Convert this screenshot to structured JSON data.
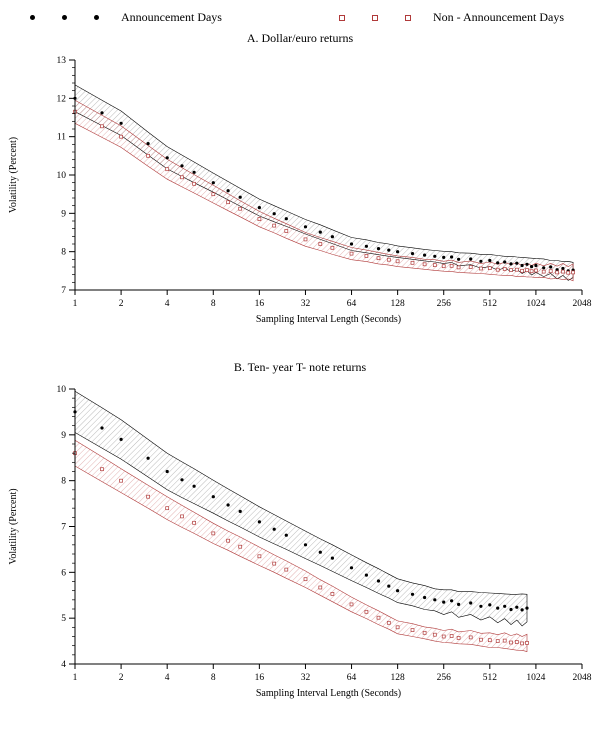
{
  "figure": {
    "legend": [
      {
        "label": "Announcement Days",
        "marker": "dot",
        "color": "#000000"
      },
      {
        "label": "Non - Announcement Days",
        "marker": "square",
        "color": "#b03a3a"
      }
    ]
  },
  "chart_data": [
    {
      "type": "scatter",
      "title": "A. Dollar/euro returns",
      "xlabel": "Sampling Interval Length (Seconds)",
      "ylabel": "Volatility (Percent)",
      "xscale": "log2",
      "xlim": [
        1,
        2048
      ],
      "ylim": [
        7,
        13
      ],
      "xticks": [
        1,
        2,
        4,
        8,
        16,
        32,
        64,
        128,
        256,
        512,
        1024,
        2048
      ],
      "yticks": [
        7,
        8,
        9,
        10,
        11,
        12,
        13
      ],
      "grid": false,
      "legend_position": "top",
      "series": [
        {
          "name": "Announcement Days",
          "marker": "dot",
          "color": "#000000",
          "hatch": "#777777",
          "x": [
            1,
            1.5,
            2,
            3,
            4,
            5,
            6,
            8,
            10,
            12,
            16,
            20,
            24,
            32,
            40,
            48,
            64,
            80,
            96,
            112,
            128,
            160,
            192,
            224,
            256,
            288,
            320,
            384,
            448,
            512,
            576,
            640,
            704,
            768,
            832,
            896,
            960,
            1024,
            1152,
            1280,
            1408,
            1536,
            1664,
            1792
          ],
          "y": [
            12.0,
            11.62,
            11.35,
            10.82,
            10.45,
            10.24,
            10.07,
            9.8,
            9.59,
            9.42,
            9.15,
            8.99,
            8.86,
            8.65,
            8.51,
            8.39,
            8.2,
            8.14,
            8.08,
            8.04,
            8.0,
            7.95,
            7.91,
            7.88,
            7.85,
            7.86,
            7.8,
            7.81,
            7.75,
            7.77,
            7.71,
            7.73,
            7.68,
            7.7,
            7.64,
            7.67,
            7.61,
            7.64,
            7.58,
            7.6,
            7.53,
            7.56,
            7.5,
            7.52
          ],
          "band": [
            0.35,
            0.33,
            0.32,
            0.3,
            0.29,
            0.28,
            0.27,
            0.25,
            0.24,
            0.23,
            0.22,
            0.21,
            0.2,
            0.19,
            0.19,
            0.18,
            0.17,
            0.17,
            0.16,
            0.16,
            0.15,
            0.15,
            0.15,
            0.15,
            0.16,
            0.14,
            0.17,
            0.15,
            0.18,
            0.16,
            0.19,
            0.15,
            0.2,
            0.16,
            0.21,
            0.17,
            0.22,
            0.18,
            0.23,
            0.17,
            0.24,
            0.18,
            0.25,
            0.2
          ]
        },
        {
          "name": "Non - Announcement Days",
          "marker": "square",
          "color": "#b03a3a",
          "hatch": "#c96a6a",
          "x": [
            1,
            1.5,
            2,
            3,
            4,
            5,
            6,
            8,
            10,
            12,
            16,
            20,
            24,
            32,
            40,
            48,
            64,
            80,
            96,
            112,
            128,
            160,
            192,
            224,
            256,
            288,
            320,
            384,
            448,
            512,
            576,
            640,
            704,
            768,
            832,
            896,
            960,
            1024,
            1152,
            1280,
            1408,
            1536,
            1664,
            1792
          ],
          "y": [
            11.65,
            11.27,
            11.0,
            10.5,
            10.15,
            9.94,
            9.77,
            9.5,
            9.29,
            9.12,
            8.85,
            8.68,
            8.54,
            8.32,
            8.2,
            8.1,
            7.95,
            7.89,
            7.83,
            7.79,
            7.75,
            7.71,
            7.67,
            7.65,
            7.62,
            7.63,
            7.59,
            7.6,
            7.56,
            7.57,
            7.53,
            7.55,
            7.52,
            7.53,
            7.5,
            7.52,
            7.49,
            7.51,
            7.48,
            7.49,
            7.46,
            7.48,
            7.45,
            7.46
          ],
          "band": [
            0.3,
            0.29,
            0.28,
            0.27,
            0.26,
            0.25,
            0.24,
            0.23,
            0.22,
            0.21,
            0.2,
            0.19,
            0.19,
            0.18,
            0.17,
            0.17,
            0.16,
            0.15,
            0.15,
            0.14,
            0.14,
            0.14,
            0.13,
            0.14,
            0.13,
            0.15,
            0.13,
            0.16,
            0.13,
            0.16,
            0.14,
            0.17,
            0.14,
            0.18,
            0.14,
            0.18,
            0.15,
            0.19,
            0.15,
            0.2,
            0.16,
            0.21,
            0.16,
            0.22
          ]
        }
      ]
    },
    {
      "type": "scatter",
      "title": "B. Ten- year T- note returns",
      "xlabel": "Sampling Interval Length (Seconds)",
      "ylabel": "Volatility (Percent)",
      "xscale": "log2",
      "xlim": [
        1,
        2048
      ],
      "ylim": [
        4,
        10
      ],
      "xticks": [
        1,
        2,
        4,
        8,
        16,
        32,
        64,
        128,
        256,
        512,
        1024,
        2048
      ],
      "yticks": [
        4,
        5,
        6,
        7,
        8,
        9,
        10
      ],
      "grid": false,
      "legend_position": "top",
      "series": [
        {
          "name": "Announcement Days",
          "marker": "dot",
          "color": "#000000",
          "hatch": "#777777",
          "x": [
            1,
            1.5,
            2,
            3,
            4,
            5,
            6,
            8,
            10,
            12,
            16,
            20,
            24,
            32,
            40,
            48,
            64,
            80,
            96,
            112,
            128,
            160,
            192,
            224,
            256,
            288,
            320,
            384,
            448,
            512,
            576,
            640,
            704,
            768,
            832,
            896
          ],
          "y": [
            9.5,
            9.15,
            8.9,
            8.49,
            8.2,
            8.02,
            7.88,
            7.65,
            7.47,
            7.33,
            7.1,
            6.94,
            6.81,
            6.6,
            6.44,
            6.31,
            6.1,
            5.94,
            5.81,
            5.7,
            5.6,
            5.52,
            5.45,
            5.4,
            5.35,
            5.38,
            5.3,
            5.33,
            5.26,
            5.29,
            5.22,
            5.26,
            5.19,
            5.24,
            5.18,
            5.22
          ],
          "band": [
            0.45,
            0.44,
            0.43,
            0.41,
            0.4,
            0.39,
            0.38,
            0.36,
            0.35,
            0.34,
            0.33,
            0.32,
            0.31,
            0.3,
            0.29,
            0.29,
            0.28,
            0.27,
            0.27,
            0.26,
            0.26,
            0.25,
            0.26,
            0.24,
            0.27,
            0.24,
            0.28,
            0.25,
            0.3,
            0.26,
            0.32,
            0.27,
            0.33,
            0.28,
            0.35,
            0.3
          ]
        },
        {
          "name": "Non - Announcement Days",
          "marker": "square",
          "color": "#b03a3a",
          "hatch": "#c96a6a",
          "x": [
            1,
            1.5,
            2,
            3,
            4,
            5,
            6,
            8,
            10,
            12,
            16,
            20,
            24,
            32,
            40,
            48,
            64,
            80,
            96,
            112,
            128,
            160,
            192,
            224,
            256,
            288,
            320,
            384,
            448,
            512,
            576,
            640,
            704,
            768,
            832,
            896
          ],
          "y": [
            8.6,
            8.25,
            8.0,
            7.65,
            7.4,
            7.22,
            7.08,
            6.85,
            6.69,
            6.56,
            6.35,
            6.19,
            6.06,
            5.85,
            5.67,
            5.53,
            5.3,
            5.14,
            5.01,
            4.9,
            4.8,
            4.74,
            4.68,
            4.64,
            4.6,
            4.61,
            4.57,
            4.58,
            4.53,
            4.52,
            4.5,
            4.51,
            4.47,
            4.48,
            4.45,
            4.46
          ],
          "band": [
            0.28,
            0.27,
            0.26,
            0.25,
            0.25,
            0.24,
            0.23,
            0.22,
            0.21,
            0.21,
            0.2,
            0.19,
            0.19,
            0.18,
            0.17,
            0.17,
            0.16,
            0.15,
            0.15,
            0.14,
            0.14,
            0.14,
            0.13,
            0.14,
            0.13,
            0.15,
            0.13,
            0.15,
            0.14,
            0.16,
            0.14,
            0.17,
            0.15,
            0.18,
            0.15,
            0.19
          ]
        }
      ]
    }
  ]
}
